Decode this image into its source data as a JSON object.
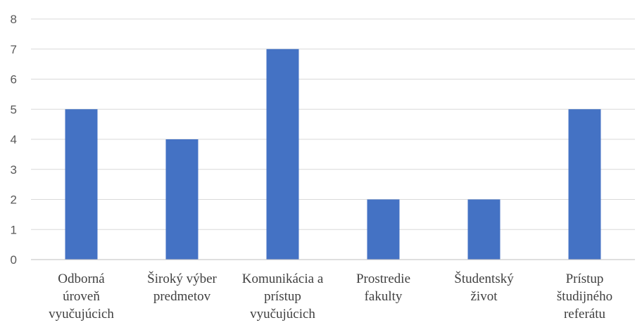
{
  "chart_data": {
    "type": "bar",
    "title": "",
    "xlabel": "",
    "ylabel": "",
    "categories": [
      [
        "Odborná",
        "úroveň",
        "vyučujúcich"
      ],
      [
        "Široký výber",
        "predmetov"
      ],
      [
        "Komunikácia a",
        "prístup",
        "vyučujúcich"
      ],
      [
        "Prostredie",
        "fakulty"
      ],
      [
        "Študentský",
        "život"
      ],
      [
        "Prístup",
        "študijného",
        "referátu"
      ]
    ],
    "values": [
      5,
      4,
      7,
      2,
      2,
      5
    ],
    "ylim": [
      0,
      8
    ],
    "yticks": [
      "0",
      "1",
      "2",
      "3",
      "4",
      "5",
      "6",
      "7",
      "8"
    ],
    "grid": true,
    "legend": "none",
    "bar_color": "#4472C4"
  }
}
